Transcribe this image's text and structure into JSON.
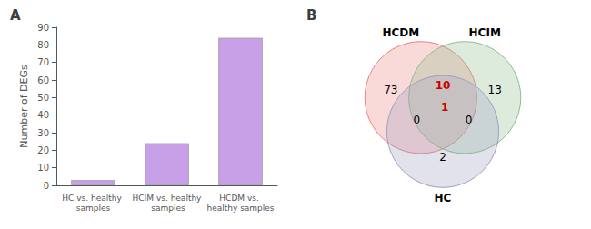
{
  "chart_data": [
    {
      "type": "bar",
      "title": "A",
      "categories": [
        "HC vs. healthy samples",
        "HCIM vs. healthy samples",
        "HCDM vs. healthy samples"
      ],
      "values": [
        3,
        24,
        84
      ],
      "color": "#c8a0e8",
      "ylabel": "Number of DEGs",
      "ylim": [
        0,
        90
      ],
      "yticks": [
        0,
        10,
        20,
        30,
        40,
        50,
        60,
        70,
        80,
        90
      ],
      "grid": false
    },
    {
      "type": "venn",
      "title": "B",
      "sets": [
        {
          "name": "HCDM",
          "color": "#f08080"
        },
        {
          "name": "HCIM",
          "color": "#8fbc8f"
        },
        {
          "name": "HC",
          "color": "#a0a0c0"
        }
      ],
      "regions": [
        {
          "sets": [
            "HCDM"
          ],
          "value": 73
        },
        {
          "sets": [
            "HCIM"
          ],
          "value": 13
        },
        {
          "sets": [
            "HC"
          ],
          "value": 2
        },
        {
          "sets": [
            "HCDM",
            "HCIM"
          ],
          "value": 10,
          "color": "#cc0000"
        },
        {
          "sets": [
            "HCDM",
            "HC"
          ],
          "value": 0
        },
        {
          "sets": [
            "HCIM",
            "HC"
          ],
          "value": 0
        },
        {
          "sets": [
            "HCDM",
            "HCIM",
            "HC"
          ],
          "value": 1,
          "color": "#cc0000"
        }
      ]
    }
  ]
}
